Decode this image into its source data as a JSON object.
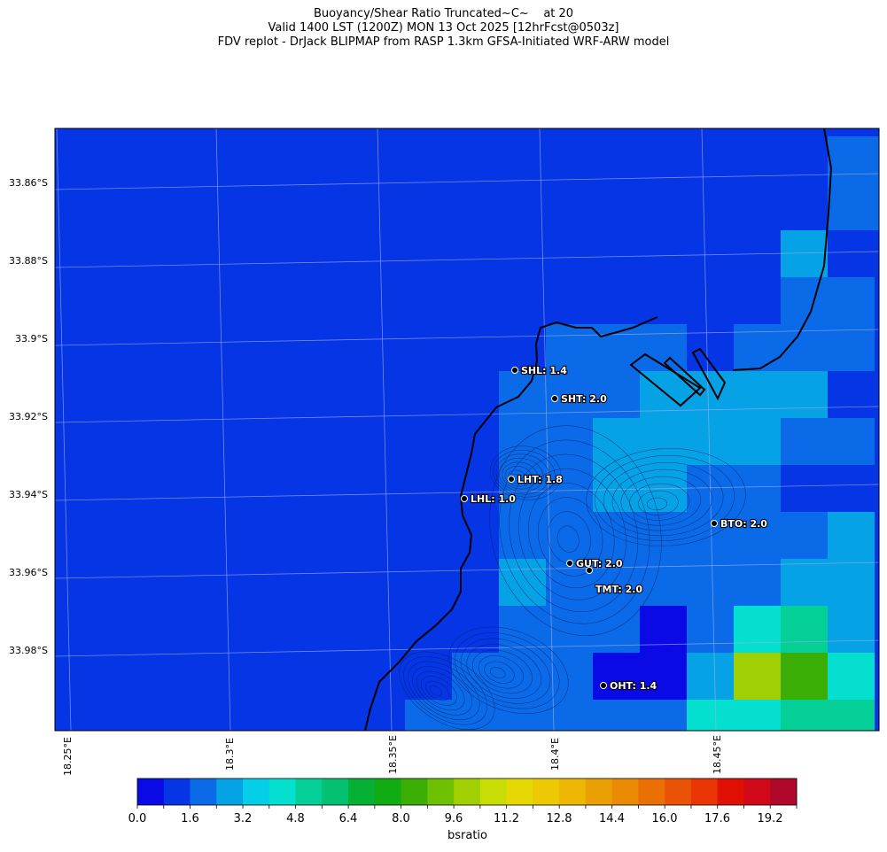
{
  "header": {
    "title_line1": "Buoyancy/Shear Ratio Truncated~C~    at 20",
    "title_line2": "Valid 1400 LST (1200Z) MON 13 Oct 2025 [12hrFcst@0503z]",
    "title_line3": "FDV replot - DrJack BLIPMAP from RASP 1.3km GFSA-Initiated WRF-ARW model"
  },
  "map": {
    "lat_labels": [
      "33.86°S",
      "33.88°S",
      "33.9°S",
      "33.92°S",
      "33.94°S",
      "33.96°S",
      "33.98°S"
    ],
    "lon_labels": [
      "18.25°E",
      "18.3°E",
      "18.35°E",
      "18.4°E",
      "18.45°E"
    ],
    "stations": [
      {
        "code": "SHL",
        "label": "SHL: 1.4",
        "value": 1.4
      },
      {
        "code": "SHT",
        "label": "SHT: 2.0",
        "value": 2.0
      },
      {
        "code": "LHT",
        "label": "LHT: 1.8",
        "value": 1.8
      },
      {
        "code": "LHL",
        "label": "LHL: 1.0",
        "value": 1.0
      },
      {
        "code": "BTO",
        "label": "BTO: 2.0",
        "value": 2.0
      },
      {
        "code": "GUT",
        "label": "GUT: 2.0",
        "value": 2.0
      },
      {
        "code": "TMT",
        "label": "TMT: 2.0",
        "value": 2.0
      },
      {
        "code": "OHT",
        "label": "OHT: 1.4",
        "value": 1.4
      }
    ]
  },
  "colorbar": {
    "label": "bsratio",
    "ticks": [
      "0.0",
      "1.6",
      "3.2",
      "4.8",
      "6.4",
      "8.0",
      "9.6",
      "11.2",
      "12.8",
      "14.4",
      "16.0",
      "17.6",
      "19.2"
    ],
    "colors": [
      "#0a0ae6",
      "#0535e5",
      "#0a6ae8",
      "#06a2e6",
      "#05cfe6",
      "#05dfcf",
      "#03cf96",
      "#05c070",
      "#05b035",
      "#11ac11",
      "#3aae05",
      "#6ec003",
      "#a0d003",
      "#c8dc05",
      "#e6d805",
      "#ecc805",
      "#eeb605",
      "#eaa005",
      "#ea8a05",
      "#ea7005",
      "#ea5205",
      "#ea3505",
      "#e01005",
      "#d00818",
      "#b0082a"
    ],
    "cell_colors": {
      "base": "#0535e5",
      "light": "#0a6ae8",
      "cyan": "#06a2e6",
      "teal": "#05dfcf",
      "green": "#03cf96",
      "yellowgreen": "#a0d003",
      "brightgreen": "#3aae05",
      "dark": "#0a0ae6"
    }
  }
}
